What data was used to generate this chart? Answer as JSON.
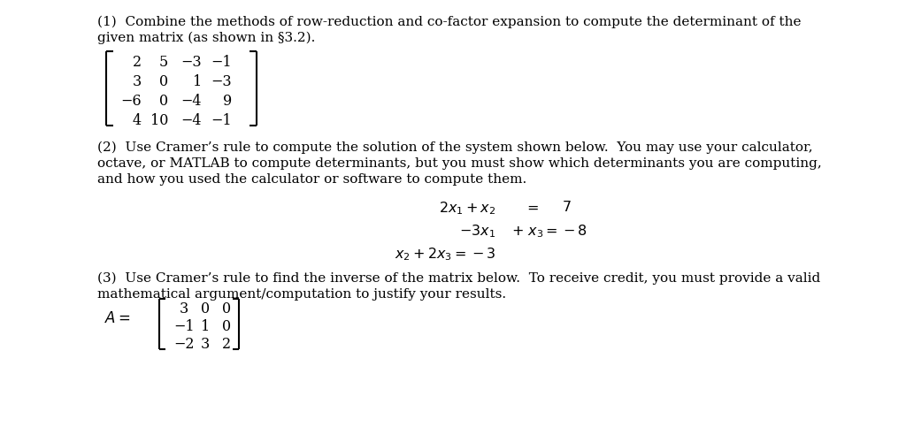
{
  "bg_color": "#ffffff",
  "text_color": "#000000",
  "figsize": [
    10.24,
    4.83
  ],
  "dpi": 100,
  "p1_line1": "(1)  Combine the methods of row-reduction and co-factor expansion to compute the determinant of the",
  "p1_line2": "given matrix (as shown in §3.2).",
  "matrix1": [
    [
      "2",
      "5",
      "−3",
      "−1"
    ],
    [
      "3",
      "0",
      "1",
      "−3"
    ],
    [
      "−6",
      "0",
      "−4",
      "9"
    ],
    [
      "4",
      "10",
      "−4",
      "−1"
    ]
  ],
  "p2_line1": "(2)  Use Cramer’s rule to compute the solution of the system shown below.  You may use your calculator,",
  "p2_line2": "octave, or MATLAB to compute determinants, but you must show which determinants you are computing,",
  "p2_line3": "and how you used the calculator or software to compute them.",
  "p3_line1": "(3)  Use Cramer’s rule to find the inverse of the matrix below.  To receive credit, you must provide a valid",
  "p3_line2": "mathematical argument/computation to justify your results.",
  "matrix2": [
    [
      "3",
      "0",
      "0"
    ],
    [
      "−1",
      "1",
      "0"
    ],
    [
      "−2",
      "3",
      "2"
    ]
  ],
  "fs_body": 11.0,
  "fs_math": 11.5,
  "lm": 0.108
}
